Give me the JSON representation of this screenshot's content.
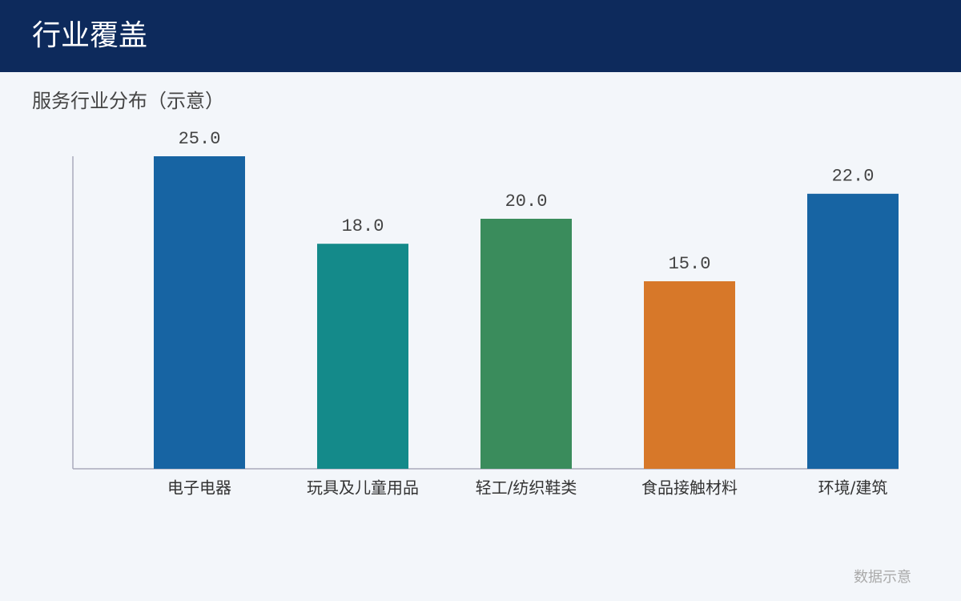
{
  "header": {
    "title": "行业覆盖"
  },
  "chart_data": {
    "type": "bar",
    "subtitle": "服务行业分布（示意）",
    "categories": [
      "电子电器",
      "玩具及儿童用品",
      "轻工/纺织鞋类",
      "食品接触材料",
      "环境/建筑"
    ],
    "values": [
      25,
      18,
      20,
      15,
      22
    ],
    "value_labels": [
      "25.0",
      "18.0",
      "20.0",
      "15.0",
      "22.0"
    ],
    "colors": [
      "#1764a3",
      "#148a8a",
      "#3a8c5c",
      "#d77829",
      "#1764a3"
    ],
    "ylim": [
      0,
      25
    ]
  },
  "footer": {
    "note": "数据示意"
  }
}
